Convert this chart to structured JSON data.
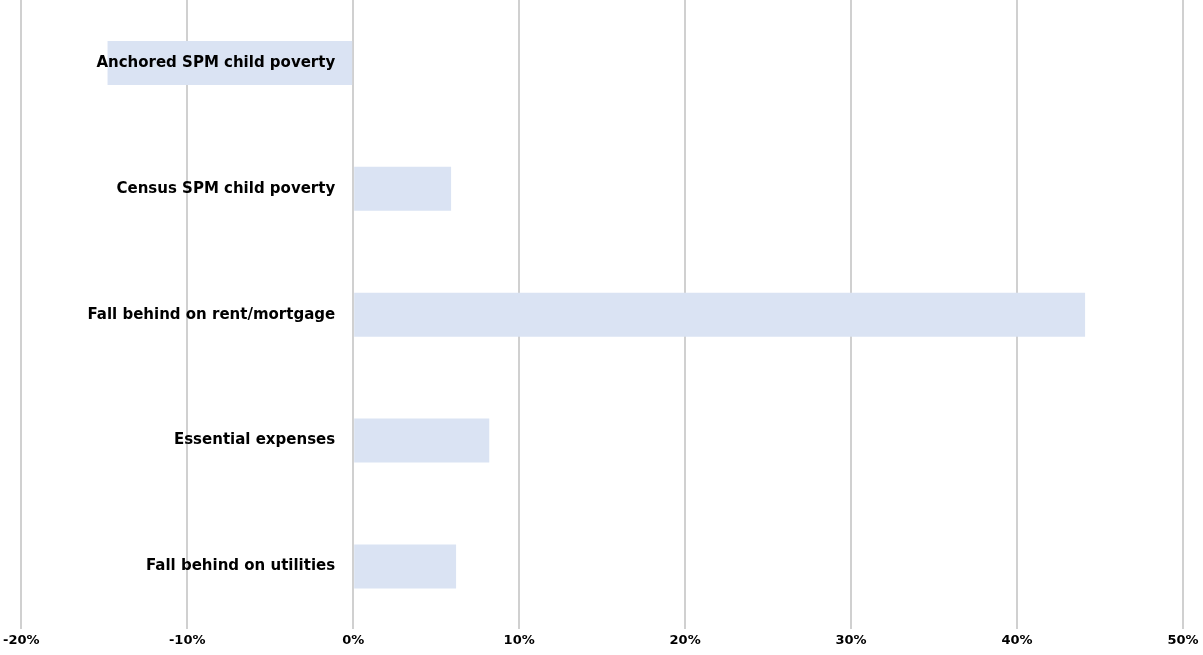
{
  "chart_data": {
    "type": "bar",
    "orientation": "horizontal",
    "categories": [
      "Anchored SPM child poverty",
      "Census SPM child poverty",
      "Fall behind on rent/mortgage",
      "Essential expenses",
      "Fall behind on utilities"
    ],
    "values": [
      -14.8,
      5.9,
      44.1,
      8.2,
      6.2
    ],
    "color": "#dae3f3",
    "xlim": [
      -20,
      50
    ],
    "xticks": [
      {
        "value": -20,
        "label": "-20%"
      },
      {
        "value": -10,
        "label": "-10%"
      },
      {
        "value": 0,
        "label": "0%"
      },
      {
        "value": 10,
        "label": "10%"
      },
      {
        "value": 20,
        "label": "20%"
      },
      {
        "value": 30,
        "label": "30%"
      },
      {
        "value": 40,
        "label": "40%"
      },
      {
        "value": 50,
        "label": "50%"
      }
    ],
    "grid": "x"
  }
}
